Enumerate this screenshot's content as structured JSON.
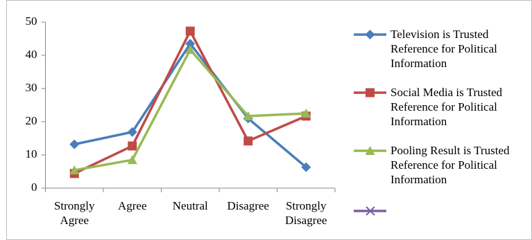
{
  "chart_data": {
    "type": "line",
    "categories": [
      "Strongly Agree",
      "Agree",
      "Neutral",
      "Disagree",
      "Strongly Disagree"
    ],
    "series": [
      {
        "name": "Television is Trusted Reference for Political Information",
        "color": "#4a7ebb",
        "marker": "diamond",
        "values": [
          13.2,
          16.9,
          43.5,
          21,
          6.3
        ]
      },
      {
        "name": "Social Media is Trusted Reference for Political Information",
        "color": "#be4b48",
        "marker": "square",
        "values": [
          4.4,
          12.7,
          47.3,
          14.2,
          21.7
        ]
      },
      {
        "name": "Pooling Result is Trusted Reference for Political Information",
        "color": "#98b954",
        "marker": "triangle",
        "values": [
          5.4,
          8.5,
          41.7,
          21.7,
          22.5
        ]
      }
    ],
    "ylim": [
      0,
      50
    ],
    "yticks": [
      0,
      10,
      20,
      30,
      40,
      50
    ]
  }
}
